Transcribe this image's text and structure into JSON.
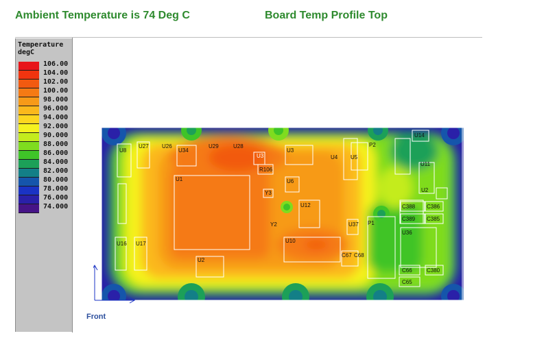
{
  "header": {
    "ambient": "Ambient Temperature is 74 Deg C",
    "profile": "Board Temp Profile Top"
  },
  "legend": {
    "title_line1": "Temperature",
    "title_line2": "degC",
    "values": [
      "106.00",
      "104.00",
      "102.00",
      "100.00",
      "98.000",
      "96.000",
      "94.000",
      "92.000",
      "90.000",
      "88.000",
      "86.000",
      "84.000",
      "82.000",
      "80.000",
      "78.000",
      "76.000",
      "74.000"
    ],
    "colors": [
      "#e8141a",
      "#f0340f",
      "#f25a10",
      "#f57a14",
      "#f79a18",
      "#fbb81c",
      "#fdd61f",
      "#f5f21f",
      "#c4ec1d",
      "#7fdc1f",
      "#3fc428",
      "#1ca058",
      "#137f87",
      "#1555ab",
      "#1a33c4",
      "#2a20a8",
      "#461487"
    ]
  },
  "board": {
    "components": [
      "U1",
      "U2",
      "U3",
      "U3",
      "U6",
      "U10",
      "U12",
      "U14",
      "U16",
      "U17",
      "U27",
      "U26",
      "U34",
      "U29",
      "U28",
      "U8",
      "U4",
      "U5",
      "U37",
      "U11",
      "U2",
      "U36",
      "P1",
      "P2",
      "Y2",
      "Y3",
      "R106",
      "C388",
      "C386",
      "C389",
      "C385",
      "C66",
      "C65",
      "C380",
      "C67",
      "C68"
    ],
    "axis": {
      "y": "Y",
      "x": "X"
    },
    "front_label": "Front"
  }
}
